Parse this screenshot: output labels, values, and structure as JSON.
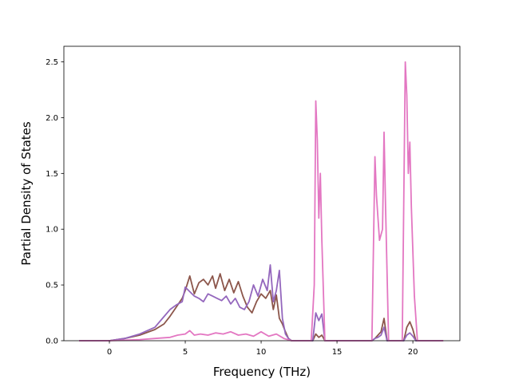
{
  "chart_data": {
    "type": "line",
    "xlabel": "Frequency (THz)",
    "ylabel": "Partial Density of States",
    "xlim": [
      -3.0,
      23.1
    ],
    "ylim": [
      0.0,
      2.64
    ],
    "xticks": [
      0,
      5,
      10,
      15,
      20
    ],
    "xtick_labels": [
      "0",
      "5",
      "10",
      "15",
      "20"
    ],
    "yticks": [
      0.0,
      0.5,
      1.0,
      1.5,
      2.0,
      2.5
    ],
    "ytick_labels": [
      "0.0",
      "0.5",
      "1.0",
      "1.5",
      "2.0",
      "2.5"
    ],
    "grid": false,
    "legend": "none",
    "series": [
      {
        "color": "#8c564b",
        "x": [
          -2.0,
          0.0,
          1.0,
          2.0,
          3.0,
          3.6,
          4.0,
          4.4,
          4.8,
          5.0,
          5.3,
          5.6,
          5.9,
          6.2,
          6.5,
          6.8,
          7.0,
          7.3,
          7.6,
          7.9,
          8.2,
          8.5,
          8.8,
          9.1,
          9.4,
          9.7,
          10.0,
          10.3,
          10.6,
          10.8,
          11.0,
          11.2,
          11.4,
          11.6,
          11.8,
          12.0,
          13.4,
          13.6,
          13.8,
          14.0,
          14.2,
          17.3,
          17.5,
          17.7,
          17.9,
          18.1,
          18.3,
          19.4,
          19.6,
          19.8,
          20.0,
          20.2,
          22.0
        ],
        "y": [
          0.0,
          0.0,
          0.02,
          0.05,
          0.1,
          0.15,
          0.22,
          0.3,
          0.38,
          0.45,
          0.58,
          0.42,
          0.52,
          0.55,
          0.5,
          0.58,
          0.47,
          0.6,
          0.45,
          0.55,
          0.43,
          0.53,
          0.4,
          0.3,
          0.25,
          0.35,
          0.42,
          0.38,
          0.45,
          0.28,
          0.41,
          0.2,
          0.15,
          0.08,
          0.02,
          0.0,
          0.0,
          0.06,
          0.03,
          0.05,
          0.0,
          0.0,
          0.02,
          0.05,
          0.08,
          0.2,
          0.0,
          0.0,
          0.12,
          0.17,
          0.1,
          0.0,
          0.0
        ]
      },
      {
        "color": "#9467bd",
        "x": [
          -2.0,
          0.0,
          1.0,
          2.0,
          3.0,
          3.5,
          4.0,
          4.4,
          4.8,
          5.0,
          5.3,
          5.6,
          5.9,
          6.2,
          6.5,
          6.8,
          7.1,
          7.4,
          7.7,
          8.0,
          8.3,
          8.6,
          8.9,
          9.2,
          9.5,
          9.8,
          10.1,
          10.4,
          10.6,
          10.8,
          11.0,
          11.2,
          11.4,
          11.6,
          11.8,
          12.0,
          13.4,
          13.6,
          13.8,
          14.0,
          14.2,
          17.3,
          17.5,
          17.7,
          17.9,
          18.1,
          18.3,
          19.4,
          19.6,
          19.8,
          20.0,
          20.2,
          22.0
        ],
        "y": [
          0.0,
          0.0,
          0.02,
          0.06,
          0.12,
          0.2,
          0.28,
          0.32,
          0.35,
          0.48,
          0.44,
          0.4,
          0.38,
          0.35,
          0.42,
          0.4,
          0.38,
          0.36,
          0.4,
          0.33,
          0.38,
          0.3,
          0.28,
          0.35,
          0.5,
          0.4,
          0.55,
          0.45,
          0.68,
          0.35,
          0.45,
          0.63,
          0.2,
          0.06,
          0.02,
          0.0,
          0.0,
          0.25,
          0.18,
          0.24,
          0.0,
          0.0,
          0.02,
          0.03,
          0.05,
          0.12,
          0.0,
          0.0,
          0.05,
          0.07,
          0.04,
          0.0,
          0.0
        ]
      },
      {
        "color": "#e377c2",
        "x": [
          -2.0,
          0.0,
          2.0,
          3.0,
          4.0,
          4.5,
          5.0,
          5.3,
          5.6,
          6.0,
          6.5,
          7.0,
          7.5,
          8.0,
          8.5,
          9.0,
          9.5,
          10.0,
          10.5,
          11.0,
          11.5,
          12.0,
          13.3,
          13.5,
          13.6,
          13.7,
          13.8,
          13.9,
          14.0,
          14.2,
          17.3,
          17.5,
          17.6,
          17.8,
          18.0,
          18.1,
          18.2,
          18.4,
          19.3,
          19.5,
          19.6,
          19.7,
          19.8,
          19.9,
          20.1,
          20.3,
          22.0
        ],
        "y": [
          0.0,
          0.0,
          0.01,
          0.02,
          0.03,
          0.05,
          0.06,
          0.09,
          0.05,
          0.06,
          0.05,
          0.07,
          0.06,
          0.08,
          0.05,
          0.06,
          0.04,
          0.08,
          0.04,
          0.06,
          0.02,
          0.0,
          0.0,
          0.5,
          2.15,
          1.8,
          1.1,
          1.5,
          0.9,
          0.0,
          0.0,
          1.65,
          1.3,
          0.9,
          1.0,
          1.87,
          1.2,
          0.0,
          0.0,
          2.5,
          2.2,
          1.5,
          1.78,
          1.2,
          0.4,
          0.0,
          0.0
        ]
      }
    ]
  }
}
